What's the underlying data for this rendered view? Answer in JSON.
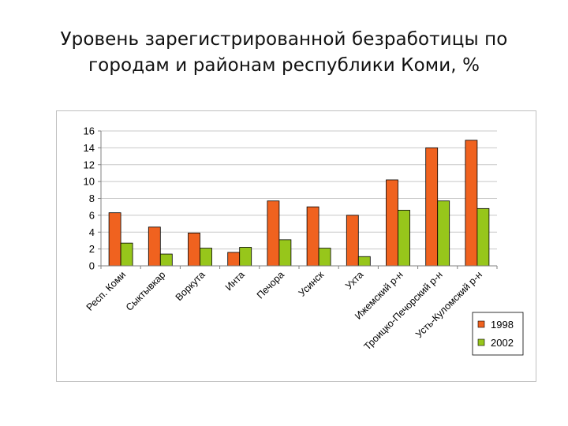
{
  "title": "Уровень зарегистрированной безработицы по городам и районам республики Коми, %",
  "colors": {
    "s1998": "#f0621f",
    "s2002": "#97c61b",
    "grid": "#c8c8c8",
    "axis": "#808080"
  },
  "chart_data": {
    "type": "bar",
    "title": "Уровень зарегистрированной безработицы по городам и районам республики Коми, %",
    "xlabel": "",
    "ylabel": "",
    "ylim": [
      0,
      16
    ],
    "yticks": [
      0,
      2,
      4,
      6,
      8,
      10,
      12,
      14,
      16
    ],
    "grid": true,
    "legend": "right",
    "categories": [
      "Респ. Коми",
      "Сыктывкар",
      "Воркута",
      "Инта",
      "Печора",
      "Усинск",
      "Ухта",
      "Ижемский р-н",
      "Троицко-Печорский р-н",
      "Усть-Куломский р-н"
    ],
    "series": [
      {
        "name": "1998",
        "color": "#f0621f",
        "values": [
          6.3,
          4.6,
          3.9,
          1.6,
          7.7,
          7.0,
          6.0,
          10.2,
          14.0,
          14.9
        ]
      },
      {
        "name": "2002",
        "color": "#97c61b",
        "values": [
          2.7,
          1.4,
          2.1,
          2.2,
          3.1,
          2.1,
          1.1,
          6.6,
          7.7,
          6.8
        ]
      }
    ]
  }
}
